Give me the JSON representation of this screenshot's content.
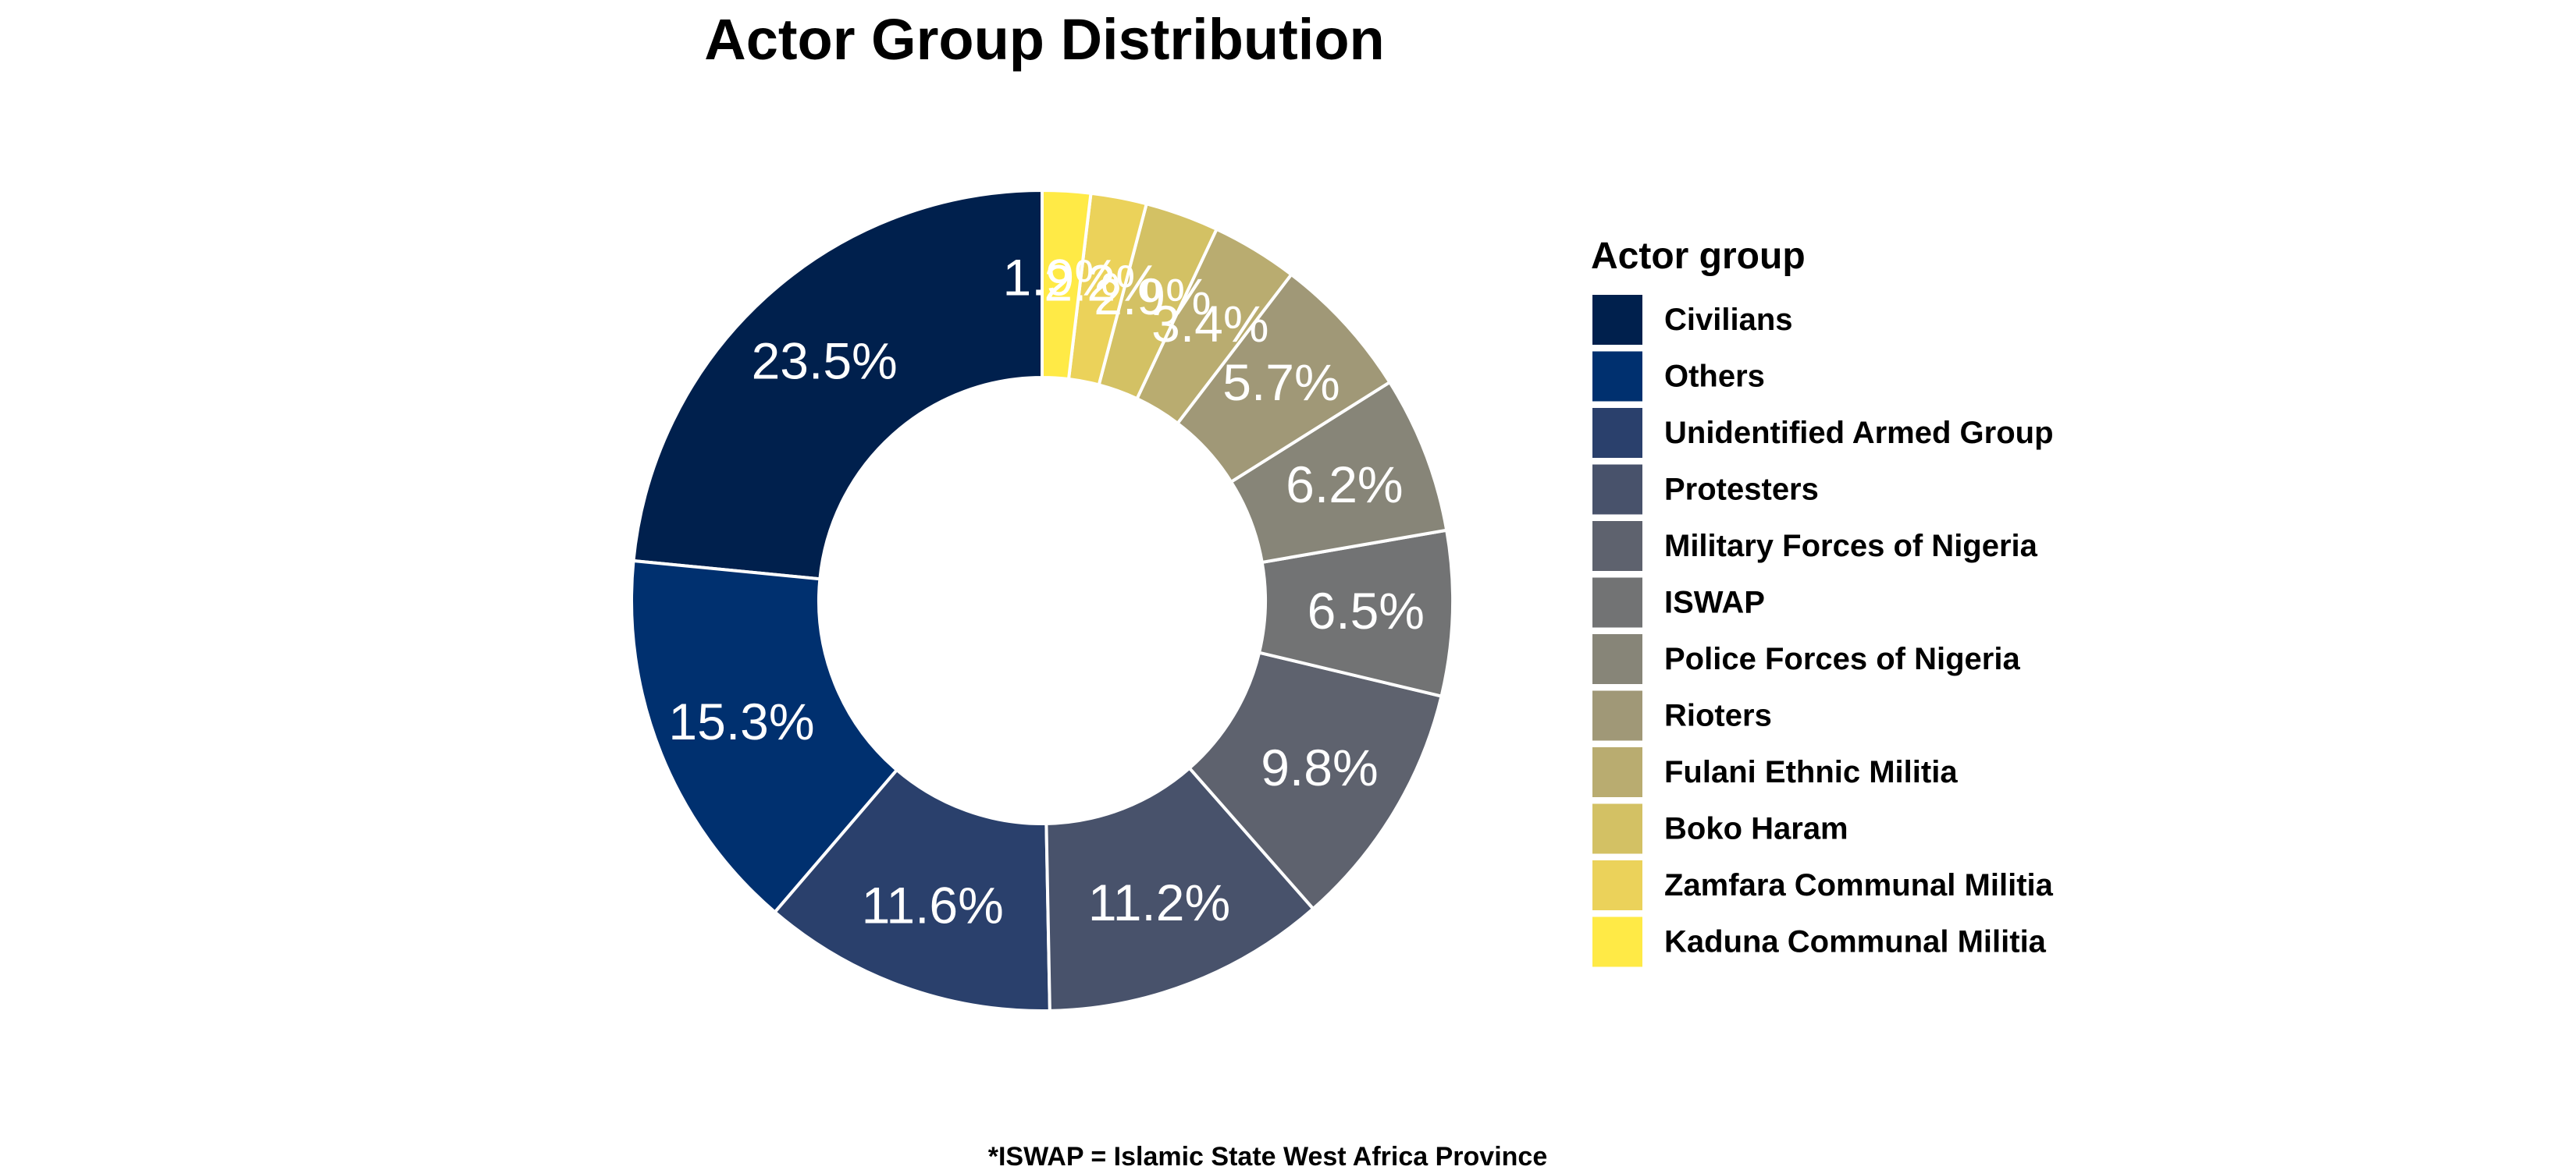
{
  "chart_data": {
    "type": "pie",
    "title": "Actor Group Distribution",
    "legend_title": "Actor group",
    "legend_position": "right",
    "caption": "*ISWAP = Islamic State West Africa Province",
    "slices": [
      {
        "label": "Civilians",
        "value": 23.5,
        "display": "23.5%",
        "color": "#00204D"
      },
      {
        "label": "Others",
        "value": 15.3,
        "display": "15.3%",
        "color": "#00306F"
      },
      {
        "label": "Unidentified Armed Group",
        "value": 11.6,
        "display": "11.6%",
        "color": "#2A406C"
      },
      {
        "label": "Protesters",
        "value": 11.2,
        "display": "11.2%",
        "color": "#48526B"
      },
      {
        "label": "Military Forces of Nigeria",
        "value": 9.8,
        "display": "9.8%",
        "color": "#5E626E"
      },
      {
        "label": "ISWAP",
        "value": 6.5,
        "display": "6.5%",
        "color": "#727374"
      },
      {
        "label": "Police Forces of Nigeria",
        "value": 6.2,
        "display": "6.2%",
        "color": "#878578"
      },
      {
        "label": "Rioters",
        "value": 5.7,
        "display": "5.7%",
        "color": "#A09877"
      },
      {
        "label": "Fulani Ethnic Militia",
        "value": 3.4,
        "display": "3.4%",
        "color": "#B9AC70"
      },
      {
        "label": "Boko Haram",
        "value": 2.9,
        "display": "2.9%",
        "color": "#D3C164"
      },
      {
        "label": "Zamfara Communal Militia",
        "value": 2.2,
        "display": "2.2%",
        "color": "#EBD25A"
      },
      {
        "label": "Kaduna Communal Militia",
        "value": 1.9,
        "display": "1.9%",
        "color": "#FFEA46"
      }
    ]
  }
}
